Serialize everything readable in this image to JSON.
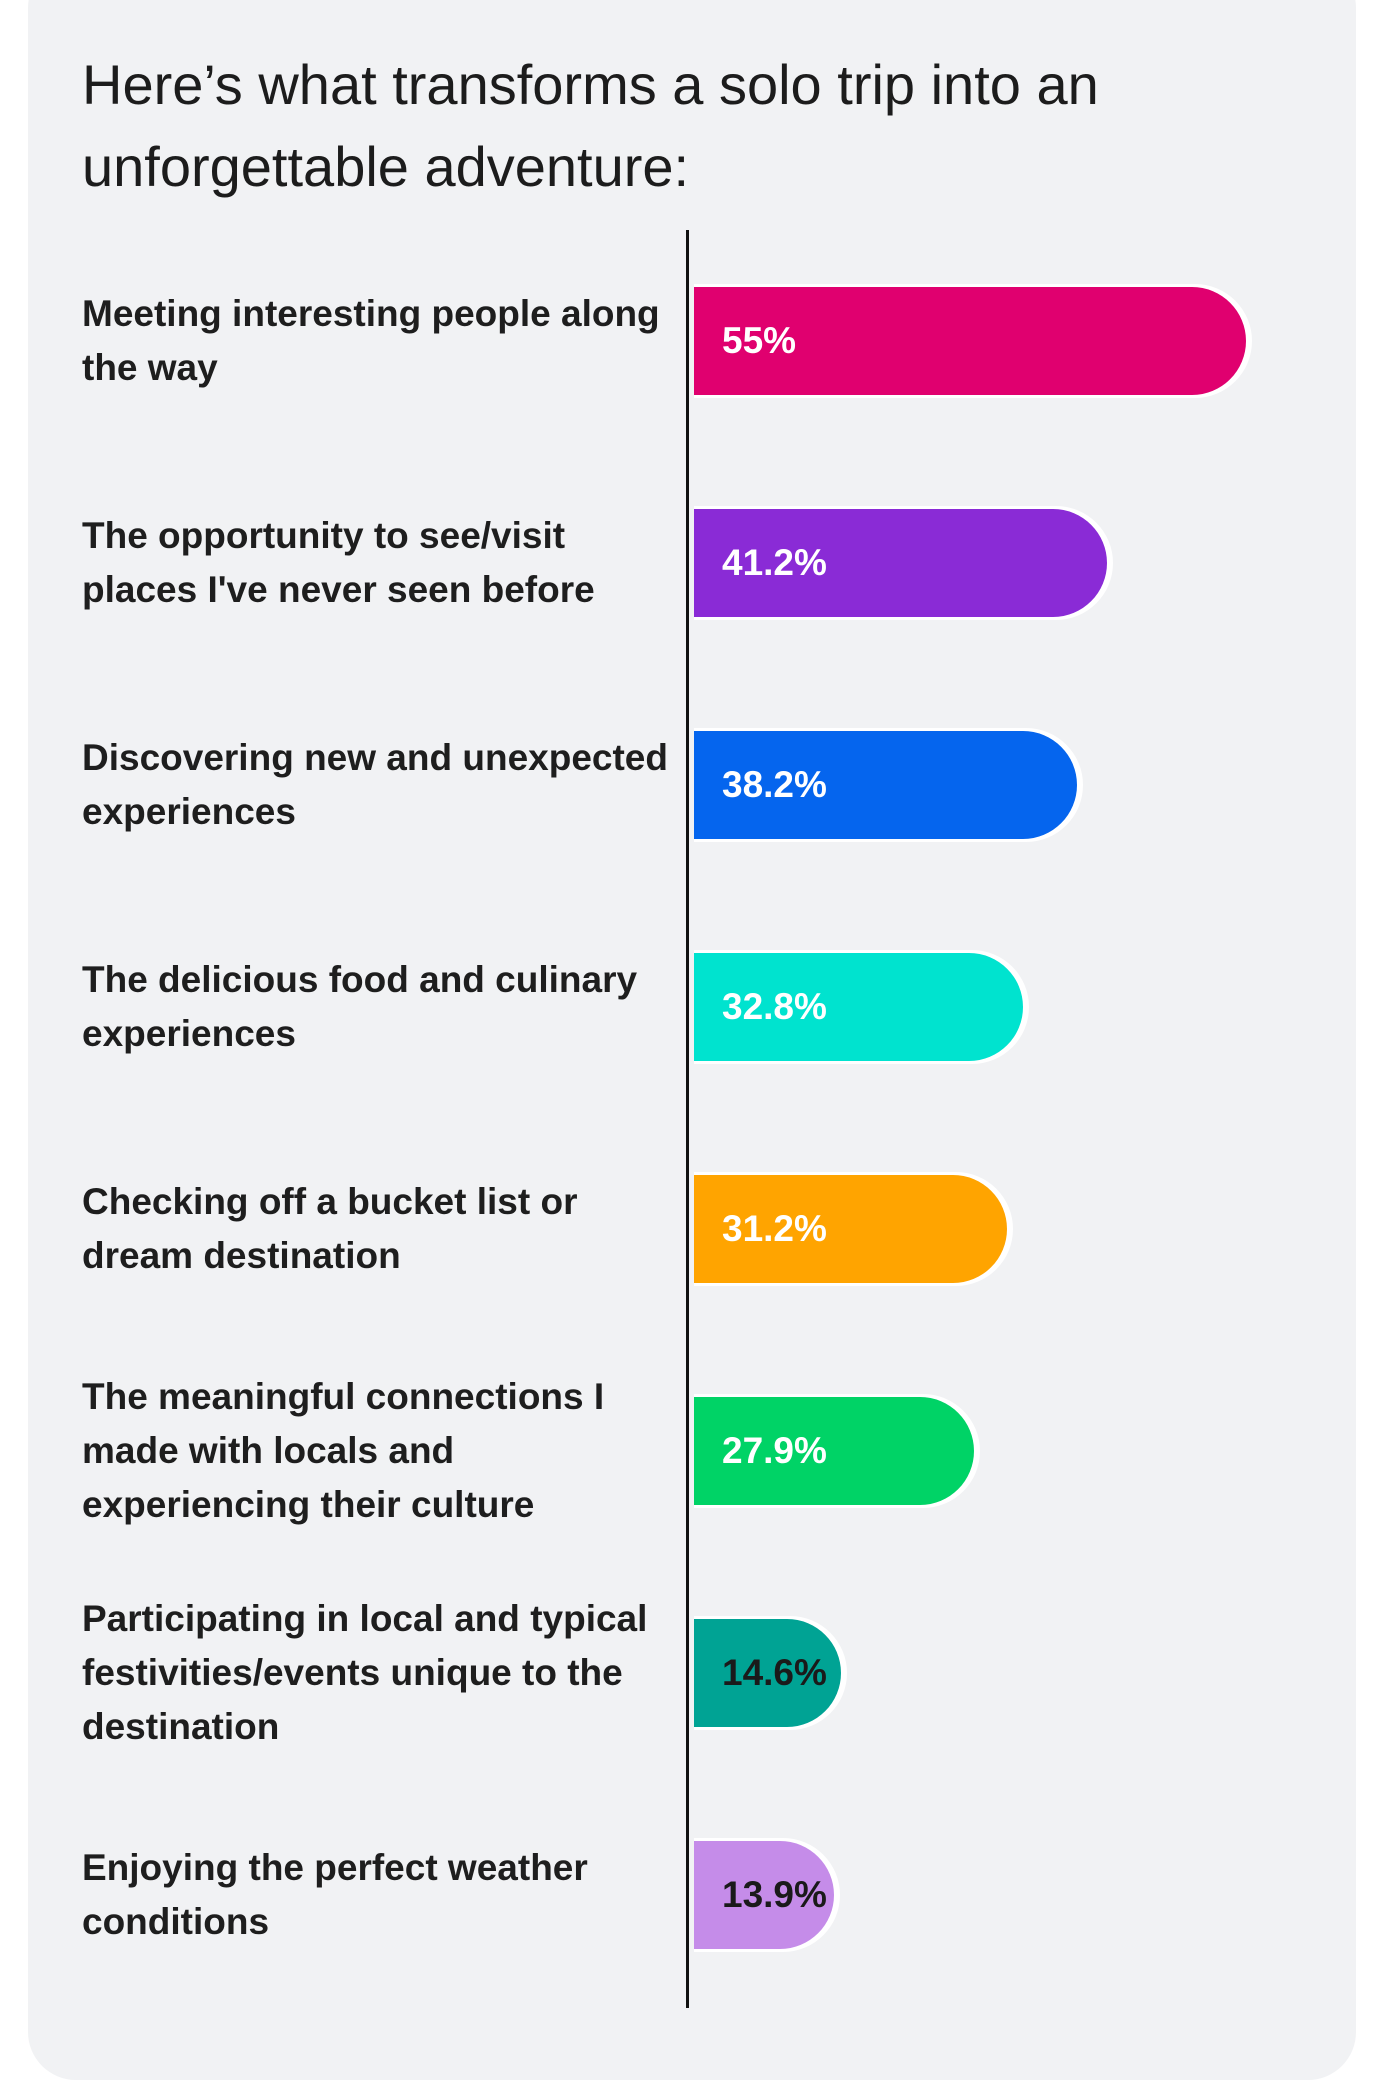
{
  "header": {
    "title": "Here’s what transforms a solo trip into an unforgettable adventure:"
  },
  "chart_data": {
    "type": "bar",
    "orientation": "horizontal",
    "title": "Here’s what transforms a solo trip into an unforgettable adventure:",
    "categories": [
      "Meeting interesting people along the way",
      "The opportunity to see/visit places I've never seen before",
      "Discovering new and unexpected experiences",
      "The delicious food and culinary experiences",
      "Checking off a bucket list or dream destination",
      "The meaningful connections I made with locals and experiencing their culture",
      "Participating in local and typical festivities/events unique to the destination",
      "Enjoying the perfect weather conditions"
    ],
    "values": [
      55,
      41.2,
      38.2,
      32.8,
      31.2,
      27.9,
      14.6,
      13.9
    ],
    "value_labels": [
      "55%",
      "41.2%",
      "38.2%",
      "32.8%",
      "31.2%",
      "27.9%",
      "14.6%",
      "13.9%"
    ],
    "colors": [
      "#e0006f",
      "#8a2bd6",
      "#0565ee",
      "#00e3cf",
      "#ffa400",
      "#00d366",
      "#00a394",
      "#c58ce9"
    ],
    "label_colors": [
      "#ffffff",
      "#ffffff",
      "#ffffff",
      "#ffffff",
      "#ffffff",
      "#ffffff",
      "#1a1a1a",
      "#1a1a1a"
    ],
    "xlim": [
      0,
      55
    ],
    "grid": false,
    "legend": "none"
  }
}
